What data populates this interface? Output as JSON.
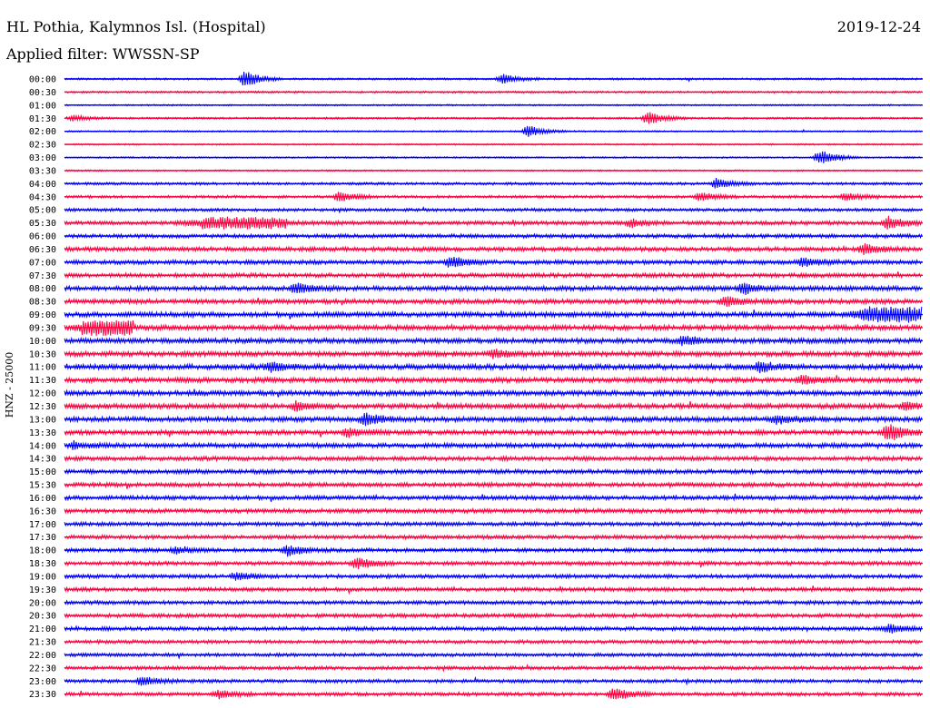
{
  "header": {
    "station": "HL Pothia, Kalymnos Isl. (Hospital)",
    "date": "2019-12-24",
    "filter": "Applied filter: WWSSN-SP",
    "channel": "HNZ - 25000"
  },
  "colors": {
    "odd_trace": "#0000ff",
    "even_trace": "#ff0040",
    "text": "#000000",
    "background": "#ffffff"
  },
  "chart_data": {
    "type": "line",
    "title": "HL Pothia, Kalymnos Isl. (Hospital)",
    "subtitle": "Applied filter: WWSSN-SP",
    "ylabel": "HNZ - 25000",
    "xlabel": "",
    "row_interval_minutes": 30,
    "grid": false,
    "legend": "none",
    "rows": [
      {
        "label": "00:00",
        "color": "blue",
        "noise": 0.25,
        "events": [
          {
            "at": 0.21,
            "amp": 1.6
          },
          {
            "at": 0.51,
            "amp": 0.9
          }
        ]
      },
      {
        "label": "00:30",
        "color": "red",
        "noise": 0.25,
        "events": []
      },
      {
        "label": "01:00",
        "color": "blue",
        "noise": 0.2,
        "events": []
      },
      {
        "label": "01:30",
        "color": "red",
        "noise": 0.25,
        "events": [
          {
            "at": 0.01,
            "amp": 0.5
          },
          {
            "at": 0.68,
            "amp": 1.3
          }
        ]
      },
      {
        "label": "02:00",
        "color": "blue",
        "noise": 0.2,
        "events": [
          {
            "at": 0.54,
            "amp": 1.1
          }
        ]
      },
      {
        "label": "02:30",
        "color": "red",
        "noise": 0.2,
        "events": []
      },
      {
        "label": "03:00",
        "color": "blue",
        "noise": 0.2,
        "events": [
          {
            "at": 0.88,
            "amp": 1.6
          }
        ]
      },
      {
        "label": "03:30",
        "color": "red",
        "noise": 0.2,
        "events": []
      },
      {
        "label": "04:00",
        "color": "blue",
        "noise": 0.35,
        "events": [
          {
            "at": 0.76,
            "amp": 0.9
          }
        ]
      },
      {
        "label": "04:30",
        "color": "red",
        "noise": 0.35,
        "events": [
          {
            "at": 0.32,
            "amp": 1.0
          },
          {
            "at": 0.74,
            "amp": 0.8
          },
          {
            "at": 0.91,
            "amp": 0.8
          }
        ]
      },
      {
        "label": "05:00",
        "color": "blue",
        "noise": 0.4,
        "events": []
      },
      {
        "label": "05:30",
        "color": "red",
        "noise": 0.5,
        "events": [
          {
            "at": 0.16,
            "amp": 0.9,
            "len": 0.1
          },
          {
            "at": 0.66,
            "amp": 0.7
          },
          {
            "at": 0.96,
            "amp": 1.2
          }
        ]
      },
      {
        "label": "06:00",
        "color": "blue",
        "noise": 0.5,
        "events": []
      },
      {
        "label": "06:30",
        "color": "red",
        "noise": 0.55,
        "events": [
          {
            "at": 0.93,
            "amp": 0.9
          }
        ]
      },
      {
        "label": "07:00",
        "color": "blue",
        "noise": 0.55,
        "events": [
          {
            "at": 0.45,
            "amp": 1.0
          },
          {
            "at": 0.86,
            "amp": 0.9
          }
        ]
      },
      {
        "label": "07:30",
        "color": "red",
        "noise": 0.55,
        "events": []
      },
      {
        "label": "08:00",
        "color": "blue",
        "noise": 0.6,
        "events": [
          {
            "at": 0.27,
            "amp": 1.0
          },
          {
            "at": 0.79,
            "amp": 1.0
          }
        ]
      },
      {
        "label": "08:30",
        "color": "red",
        "noise": 0.6,
        "events": [
          {
            "at": 0.77,
            "amp": 0.8
          }
        ]
      },
      {
        "label": "09:00",
        "color": "blue",
        "noise": 0.65,
        "events": [
          {
            "at": 0.93,
            "amp": 1.2,
            "len": 0.07
          }
        ]
      },
      {
        "label": "09:30",
        "color": "red",
        "noise": 0.65,
        "events": [
          {
            "at": 0.02,
            "amp": 1.2,
            "len": 0.06
          }
        ]
      },
      {
        "label": "10:00",
        "color": "blue",
        "noise": 0.65,
        "events": [
          {
            "at": 0.72,
            "amp": 0.9
          }
        ]
      },
      {
        "label": "10:30",
        "color": "red",
        "noise": 0.65,
        "events": [
          {
            "at": 0.5,
            "amp": 0.7
          }
        ]
      },
      {
        "label": "11:00",
        "color": "blue",
        "noise": 0.7,
        "events": [
          {
            "at": 0.24,
            "amp": 0.8
          },
          {
            "at": 0.81,
            "amp": 0.9
          }
        ]
      },
      {
        "label": "11:30",
        "color": "red",
        "noise": 0.65,
        "events": [
          {
            "at": 0.86,
            "amp": 0.7
          }
        ]
      },
      {
        "label": "12:00",
        "color": "blue",
        "noise": 0.65,
        "events": []
      },
      {
        "label": "12:30",
        "color": "red",
        "noise": 0.65,
        "events": [
          {
            "at": 0.27,
            "amp": 0.8
          },
          {
            "at": 0.98,
            "amp": 0.8
          }
        ]
      },
      {
        "label": "13:00",
        "color": "blue",
        "noise": 0.65,
        "events": [
          {
            "at": 0.35,
            "amp": 1.1
          },
          {
            "at": 0.83,
            "amp": 0.8
          }
        ]
      },
      {
        "label": "13:30",
        "color": "red",
        "noise": 0.6,
        "events": [
          {
            "at": 0.33,
            "amp": 0.8
          },
          {
            "at": 0.96,
            "amp": 1.7
          }
        ]
      },
      {
        "label": "14:00",
        "color": "blue",
        "noise": 0.6,
        "events": [
          {
            "at": 0.01,
            "amp": 0.6
          }
        ]
      },
      {
        "label": "14:30",
        "color": "red",
        "noise": 0.55,
        "events": []
      },
      {
        "label": "15:00",
        "color": "blue",
        "noise": 0.55,
        "events": []
      },
      {
        "label": "15:30",
        "color": "red",
        "noise": 0.55,
        "events": []
      },
      {
        "label": "16:00",
        "color": "blue",
        "noise": 0.55,
        "events": []
      },
      {
        "label": "16:30",
        "color": "red",
        "noise": 0.55,
        "events": []
      },
      {
        "label": "17:00",
        "color": "blue",
        "noise": 0.5,
        "events": []
      },
      {
        "label": "17:30",
        "color": "red",
        "noise": 0.5,
        "events": []
      },
      {
        "label": "18:00",
        "color": "blue",
        "noise": 0.5,
        "events": [
          {
            "at": 0.13,
            "amp": 0.7
          },
          {
            "at": 0.26,
            "amp": 1.0
          }
        ]
      },
      {
        "label": "18:30",
        "color": "red",
        "noise": 0.5,
        "events": [
          {
            "at": 0.34,
            "amp": 1.1
          }
        ]
      },
      {
        "label": "19:00",
        "color": "blue",
        "noise": 0.5,
        "events": [
          {
            "at": 0.2,
            "amp": 0.8
          }
        ]
      },
      {
        "label": "19:30",
        "color": "red",
        "noise": 0.5,
        "events": []
      },
      {
        "label": "20:00",
        "color": "blue",
        "noise": 0.5,
        "events": []
      },
      {
        "label": "20:30",
        "color": "red",
        "noise": 0.5,
        "events": []
      },
      {
        "label": "21:00",
        "color": "blue",
        "noise": 0.5,
        "events": [
          {
            "at": 0.96,
            "amp": 0.8
          }
        ]
      },
      {
        "label": "21:30",
        "color": "red",
        "noise": 0.45,
        "events": []
      },
      {
        "label": "22:00",
        "color": "blue",
        "noise": 0.45,
        "events": []
      },
      {
        "label": "22:30",
        "color": "red",
        "noise": 0.45,
        "events": []
      },
      {
        "label": "23:00",
        "color": "blue",
        "noise": 0.45,
        "events": [
          {
            "at": 0.09,
            "amp": 0.8
          }
        ]
      },
      {
        "label": "23:30",
        "color": "red",
        "noise": 0.45,
        "events": [
          {
            "at": 0.18,
            "amp": 0.8
          },
          {
            "at": 0.64,
            "amp": 1.2
          }
        ]
      }
    ]
  }
}
